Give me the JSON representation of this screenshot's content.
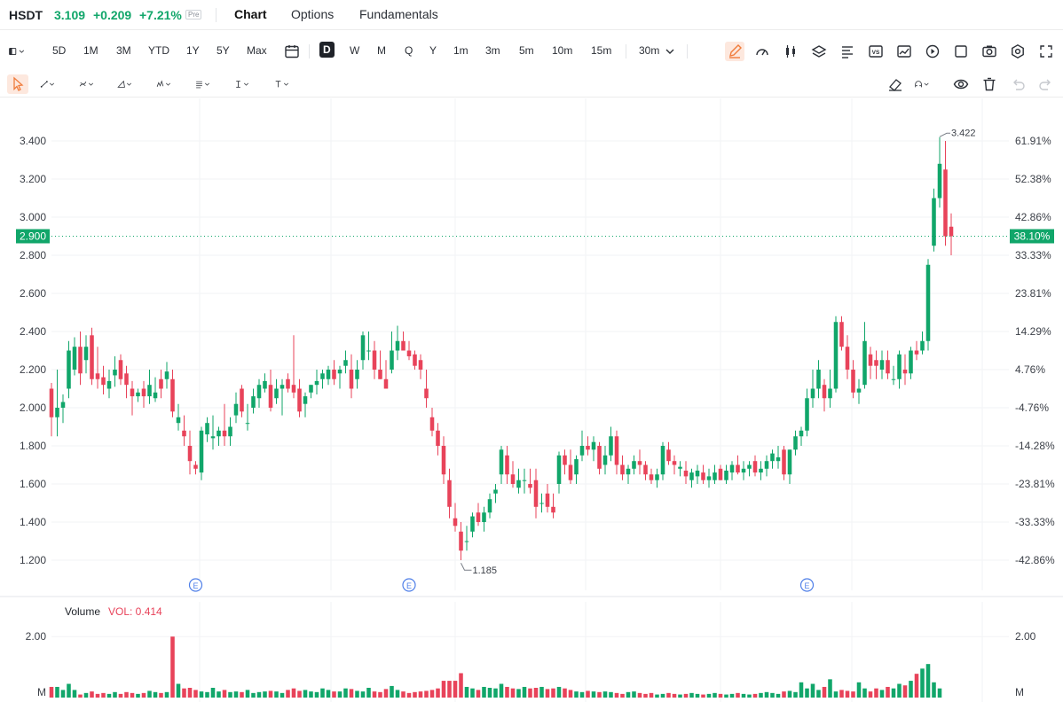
{
  "header": {
    "symbol": "HSDT",
    "price": "3.109",
    "change": "+0.209",
    "change_pct": "+7.21%",
    "session_badge": "Pre",
    "tabs": [
      {
        "label": "Chart",
        "active": true
      },
      {
        "label": "Options",
        "active": false
      },
      {
        "label": "Fundamentals",
        "active": false
      }
    ]
  },
  "toolbar": {
    "ranges": [
      "5D",
      "1M",
      "3M",
      "YTD",
      "1Y",
      "5Y",
      "Max"
    ],
    "intervals": [
      "D",
      "W",
      "M",
      "Q",
      "Y",
      "1m",
      "3m",
      "5m",
      "10m",
      "15m"
    ],
    "selected_interval": "D",
    "interval_dropdown": "30m",
    "right_icons": [
      "pencil-icon",
      "gauge-icon",
      "candles-icon",
      "layers-icon",
      "text-align-icon",
      "vs-icon",
      "chart-area-icon",
      "replay-icon",
      "square-icon",
      "camera-icon",
      "settings-icon",
      "fullscreen-icon"
    ]
  },
  "drawing_tools": [
    "cursor-icon",
    "line-tool-icon",
    "curve-tool-icon",
    "triangle-tool-icon",
    "pattern-tool-icon",
    "fib-tool-icon",
    "text-cursor-icon",
    "text-tool-icon"
  ],
  "drawing_right": [
    "eraser-icon",
    "magnet-icon",
    "eye-icon",
    "trash-icon",
    "undo-icon",
    "redo-icon"
  ],
  "colors": {
    "up": "#11a66a",
    "down": "#e8435a",
    "accent": "#f07c3c"
  },
  "chart_data": {
    "type": "candlestick",
    "y_ticks": [
      "3.400",
      "3.200",
      "3.000",
      "2.800",
      "2.600",
      "2.400",
      "2.200",
      "2.000",
      "1.800",
      "1.600",
      "1.400",
      "1.200"
    ],
    "pct_ticks": [
      "61.91%",
      "52.38%",
      "42.86%",
      "33.33%",
      "23.81%",
      "14.29%",
      "4.76%",
      "-4.76%",
      "-14.28%",
      "-23.81%",
      "-33.33%",
      "-42.86%"
    ],
    "ylim": [
      1.1,
      3.5
    ],
    "current_price_label": "2.900",
    "current_pct_label": "38.10%",
    "high_label": "3.422",
    "low_label": "1.185",
    "earnings_marker": "E",
    "earnings_marker_positions": [
      25,
      62,
      131
    ],
    "volume_title": "Volume",
    "volume_value_label": "VOL: 0.414",
    "volume_tick_label": "2.00",
    "volume_unit_label": "M",
    "volume_ylim": [
      0,
      2.5
    ],
    "candles": [
      [
        2.1,
        2.13,
        1.85,
        1.95
      ],
      [
        1.95,
        2.2,
        1.85,
        2.0
      ],
      [
        2.0,
        2.07,
        1.92,
        2.03
      ],
      [
        2.1,
        2.35,
        2.05,
        2.3
      ],
      [
        2.2,
        2.37,
        2.17,
        2.32
      ],
      [
        2.32,
        2.4,
        2.12,
        2.18
      ],
      [
        2.25,
        2.38,
        2.18,
        2.32
      ],
      [
        2.38,
        2.42,
        2.12,
        2.15
      ],
      [
        2.18,
        2.32,
        2.1,
        2.15
      ],
      [
        2.16,
        2.22,
        2.07,
        2.12
      ],
      [
        2.1,
        2.2,
        2.05,
        2.14
      ],
      [
        2.17,
        2.27,
        2.11,
        2.2
      ],
      [
        2.25,
        2.28,
        2.12,
        2.15
      ],
      [
        2.18,
        2.22,
        2.05,
        2.12
      ],
      [
        2.1,
        2.14,
        1.96,
        2.06
      ],
      [
        2.06,
        2.1,
        2.03,
        2.08
      ],
      [
        2.1,
        2.14,
        2.0,
        2.06
      ],
      [
        2.06,
        2.2,
        2.02,
        2.12
      ],
      [
        2.05,
        2.16,
        2.03,
        2.08
      ],
      [
        2.15,
        2.2,
        2.05,
        2.1
      ],
      [
        2.15,
        2.24,
        2.1,
        2.19
      ],
      [
        2.15,
        2.2,
        1.95,
        1.98
      ],
      [
        1.92,
        2.02,
        1.88,
        1.95
      ],
      [
        1.88,
        1.96,
        1.8,
        1.85
      ],
      [
        1.8,
        1.88,
        1.65,
        1.72
      ],
      [
        1.7,
        1.72,
        1.65,
        1.68
      ],
      [
        1.66,
        1.9,
        1.62,
        1.88
      ],
      [
        1.86,
        1.95,
        1.82,
        1.92
      ],
      [
        1.84,
        1.96,
        1.78,
        1.85
      ],
      [
        1.85,
        1.9,
        1.8,
        1.88
      ],
      [
        1.88,
        2.02,
        1.8,
        1.85
      ],
      [
        1.85,
        1.95,
        1.8,
        1.9
      ],
      [
        1.96,
        2.08,
        1.92,
        2.02
      ],
      [
        2.1,
        2.12,
        1.95,
        1.98
      ],
      [
        1.92,
        2.02,
        1.88,
        1.92
      ],
      [
        2.0,
        2.1,
        1.97,
        2.06
      ],
      [
        2.05,
        2.15,
        2.0,
        2.12
      ],
      [
        2.1,
        2.18,
        2.08,
        2.14
      ],
      [
        2.12,
        2.2,
        1.98,
        2.0
      ],
      [
        2.05,
        2.15,
        2.02,
        2.1
      ],
      [
        2.1,
        2.15,
        1.96,
        2.12
      ],
      [
        2.15,
        2.18,
        2.08,
        2.1
      ],
      [
        2.12,
        2.38,
        2.05,
        2.08
      ],
      [
        2.1,
        2.15,
        1.95,
        1.98
      ],
      [
        2.02,
        2.08,
        1.95,
        2.06
      ],
      [
        2.08,
        2.12,
        2.05,
        2.12
      ],
      [
        2.12,
        2.2,
        2.07,
        2.14
      ],
      [
        2.15,
        2.2,
        2.1,
        2.18
      ],
      [
        2.15,
        2.22,
        2.12,
        2.2
      ],
      [
        2.2,
        2.25,
        2.12,
        2.15
      ],
      [
        2.18,
        2.22,
        2.1,
        2.2
      ],
      [
        2.22,
        2.3,
        2.18,
        2.25
      ],
      [
        2.2,
        2.28,
        2.05,
        2.1
      ],
      [
        2.15,
        2.25,
        2.1,
        2.2
      ],
      [
        2.25,
        2.4,
        2.2,
        2.38
      ],
      [
        2.3,
        2.4,
        2.25,
        2.3
      ],
      [
        2.3,
        2.35,
        2.15,
        2.2
      ],
      [
        2.2,
        2.3,
        2.15,
        2.15
      ],
      [
        2.15,
        2.25,
        2.12,
        2.1
      ],
      [
        2.2,
        2.4,
        2.18,
        2.3
      ],
      [
        2.3,
        2.43,
        2.25,
        2.35
      ],
      [
        2.35,
        2.4,
        2.3,
        2.3
      ],
      [
        2.3,
        2.35,
        2.25,
        2.27
      ],
      [
        2.28,
        2.3,
        2.2,
        2.22
      ],
      [
        2.25,
        2.28,
        2.15,
        2.2
      ],
      [
        2.1,
        2.2,
        2.0,
        2.05
      ],
      [
        1.95,
        2.0,
        1.85,
        1.88
      ],
      [
        1.88,
        1.92,
        1.75,
        1.8
      ],
      [
        1.8,
        1.85,
        1.6,
        1.65
      ],
      [
        1.62,
        1.68,
        1.42,
        1.48
      ],
      [
        1.42,
        1.5,
        1.35,
        1.38
      ],
      [
        1.35,
        1.4,
        1.2,
        1.25
      ],
      [
        1.3,
        1.38,
        1.25,
        1.3
      ],
      [
        1.35,
        1.45,
        1.32,
        1.43
      ],
      [
        1.45,
        1.5,
        1.38,
        1.4
      ],
      [
        1.4,
        1.48,
        1.35,
        1.45
      ],
      [
        1.45,
        1.55,
        1.42,
        1.52
      ],
      [
        1.55,
        1.6,
        1.5,
        1.57
      ],
      [
        1.65,
        1.8,
        1.6,
        1.78
      ],
      [
        1.75,
        1.8,
        1.6,
        1.65
      ],
      [
        1.65,
        1.72,
        1.58,
        1.6
      ],
      [
        1.58,
        1.68,
        1.55,
        1.62
      ],
      [
        1.62,
        1.68,
        1.55,
        1.62
      ],
      [
        1.6,
        1.68,
        1.55,
        1.58
      ],
      [
        1.62,
        1.68,
        1.42,
        1.48
      ],
      [
        1.5,
        1.55,
        1.45,
        1.5
      ],
      [
        1.55,
        1.6,
        1.45,
        1.48
      ],
      [
        1.48,
        1.55,
        1.42,
        1.45
      ],
      [
        1.6,
        1.77,
        1.55,
        1.75
      ],
      [
        1.75,
        1.78,
        1.65,
        1.7
      ],
      [
        1.7,
        1.78,
        1.6,
        1.62
      ],
      [
        1.65,
        1.75,
        1.6,
        1.73
      ],
      [
        1.75,
        1.88,
        1.72,
        1.8
      ],
      [
        1.8,
        1.85,
        1.75,
        1.78
      ],
      [
        1.78,
        1.85,
        1.72,
        1.82
      ],
      [
        1.8,
        1.82,
        1.65,
        1.68
      ],
      [
        1.7,
        1.8,
        1.65,
        1.75
      ],
      [
        1.75,
        1.9,
        1.72,
        1.85
      ],
      [
        1.85,
        1.88,
        1.65,
        1.7
      ],
      [
        1.7,
        1.75,
        1.62,
        1.65
      ],
      [
        1.65,
        1.7,
        1.6,
        1.68
      ],
      [
        1.68,
        1.75,
        1.65,
        1.72
      ],
      [
        1.72,
        1.78,
        1.65,
        1.7
      ],
      [
        1.7,
        1.72,
        1.62,
        1.65
      ],
      [
        1.65,
        1.68,
        1.6,
        1.62
      ],
      [
        1.62,
        1.68,
        1.58,
        1.65
      ],
      [
        1.65,
        1.82,
        1.62,
        1.8
      ],
      [
        1.78,
        1.82,
        1.7,
        1.72
      ],
      [
        1.72,
        1.75,
        1.65,
        1.7
      ],
      [
        1.68,
        1.72,
        1.64,
        1.69
      ],
      [
        1.67,
        1.72,
        1.6,
        1.64
      ],
      [
        1.62,
        1.68,
        1.58,
        1.66
      ],
      [
        1.64,
        1.7,
        1.6,
        1.67
      ],
      [
        1.66,
        1.7,
        1.6,
        1.62
      ],
      [
        1.62,
        1.68,
        1.58,
        1.64
      ],
      [
        1.62,
        1.7,
        1.6,
        1.66
      ],
      [
        1.68,
        1.7,
        1.62,
        1.62
      ],
      [
        1.62,
        1.7,
        1.6,
        1.67
      ],
      [
        1.66,
        1.72,
        1.62,
        1.7
      ],
      [
        1.7,
        1.75,
        1.65,
        1.66
      ],
      [
        1.66,
        1.72,
        1.62,
        1.68
      ],
      [
        1.68,
        1.72,
        1.64,
        1.7
      ],
      [
        1.72,
        1.75,
        1.64,
        1.66
      ],
      [
        1.66,
        1.72,
        1.62,
        1.68
      ],
      [
        1.68,
        1.75,
        1.64,
        1.72
      ],
      [
        1.72,
        1.78,
        1.68,
        1.76
      ],
      [
        1.72,
        1.8,
        1.68,
        1.74
      ],
      [
        1.78,
        1.8,
        1.62,
        1.65
      ],
      [
        1.65,
        1.78,
        1.6,
        1.78
      ],
      [
        1.78,
        1.88,
        1.75,
        1.85
      ],
      [
        1.85,
        1.9,
        1.8,
        1.88
      ],
      [
        1.88,
        2.1,
        1.85,
        2.05
      ],
      [
        2.05,
        2.2,
        2.0,
        2.1
      ],
      [
        2.1,
        2.25,
        2.05,
        2.2
      ],
      [
        2.12,
        2.15,
        1.98,
        2.05
      ],
      [
        2.05,
        2.2,
        2.0,
        2.1
      ],
      [
        2.1,
        2.48,
        2.08,
        2.45
      ],
      [
        2.45,
        2.48,
        2.3,
        2.32
      ],
      [
        2.32,
        2.38,
        2.15,
        2.2
      ],
      [
        2.2,
        2.25,
        2.05,
        2.08
      ],
      [
        2.08,
        2.15,
        2.02,
        2.1
      ],
      [
        2.12,
        2.45,
        2.1,
        2.35
      ],
      [
        2.28,
        2.32,
        2.15,
        2.22
      ],
      [
        2.25,
        2.3,
        2.15,
        2.22
      ],
      [
        2.2,
        2.3,
        2.15,
        2.25
      ],
      [
        2.25,
        2.3,
        2.15,
        2.18
      ],
      [
        2.15,
        2.22,
        2.12,
        2.15
      ],
      [
        2.15,
        2.3,
        2.1,
        2.28
      ],
      [
        2.2,
        2.28,
        2.12,
        2.18
      ],
      [
        2.18,
        2.32,
        2.15,
        2.3
      ],
      [
        2.3,
        2.35,
        2.25,
        2.28
      ],
      [
        2.3,
        2.4,
        2.28,
        2.35
      ],
      [
        2.35,
        2.78,
        2.3,
        2.75
      ],
      [
        2.85,
        3.15,
        2.82,
        3.1
      ],
      [
        3.1,
        3.42,
        3.05,
        3.28
      ],
      [
        3.25,
        3.4,
        2.85,
        2.9
      ],
      [
        2.95,
        3.02,
        2.8,
        2.9
      ]
    ],
    "volumes": [
      0.35,
      0.35,
      0.25,
      0.45,
      0.25,
      0.1,
      0.15,
      0.2,
      0.12,
      0.15,
      0.12,
      0.18,
      0.12,
      0.18,
      0.15,
      0.12,
      0.15,
      0.22,
      0.18,
      0.15,
      0.18,
      2.0,
      0.45,
      0.3,
      0.32,
      0.25,
      0.2,
      0.18,
      0.32,
      0.2,
      0.25,
      0.18,
      0.2,
      0.18,
      0.25,
      0.15,
      0.18,
      0.2,
      0.22,
      0.2,
      0.15,
      0.25,
      0.3,
      0.22,
      0.25,
      0.2,
      0.18,
      0.3,
      0.25,
      0.2,
      0.2,
      0.3,
      0.28,
      0.22,
      0.2,
      0.32,
      0.2,
      0.18,
      0.28,
      0.38,
      0.25,
      0.2,
      0.15,
      0.18,
      0.2,
      0.22,
      0.25,
      0.3,
      0.55,
      0.55,
      0.55,
      0.8,
      0.35,
      0.3,
      0.25,
      0.35,
      0.32,
      0.3,
      0.45,
      0.35,
      0.3,
      0.28,
      0.35,
      0.3,
      0.32,
      0.35,
      0.28,
      0.3,
      0.35,
      0.3,
      0.25,
      0.2,
      0.18,
      0.22,
      0.2,
      0.18,
      0.2,
      0.18,
      0.15,
      0.12,
      0.18,
      0.2,
      0.15,
      0.12,
      0.15,
      0.1,
      0.12,
      0.15,
      0.12,
      0.1,
      0.12,
      0.15,
      0.12,
      0.1,
      0.12,
      0.15,
      0.12,
      0.1,
      0.12,
      0.15,
      0.12,
      0.1,
      0.12,
      0.15,
      0.18,
      0.15,
      0.12,
      0.2,
      0.22,
      0.18,
      0.5,
      0.3,
      0.45,
      0.25,
      0.35,
      0.6,
      0.2,
      0.25,
      0.22,
      0.2,
      0.5,
      0.3,
      0.2,
      0.3,
      0.25,
      0.35,
      0.3,
      0.45,
      0.4,
      0.55,
      0.78,
      0.95,
      1.1,
      0.5,
      0.3
    ]
  }
}
